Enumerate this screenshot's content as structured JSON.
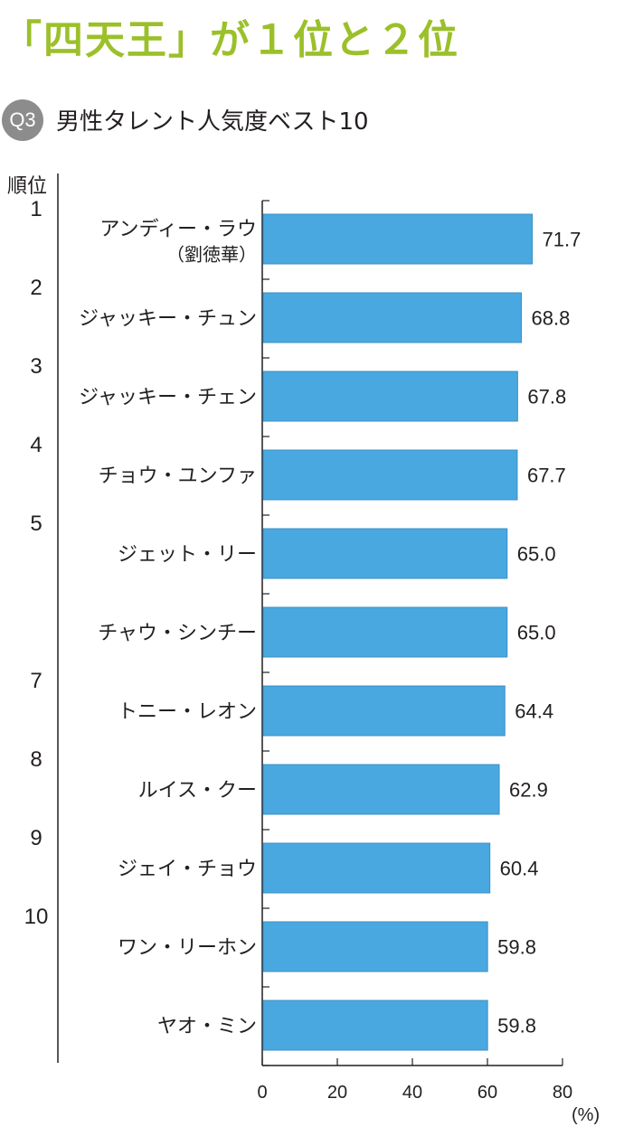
{
  "headline": "「四天王」が１位と２位",
  "question": {
    "badge": "Q3",
    "title": "男性タレント人気度ベスト10"
  },
  "chart_data": {
    "type": "bar",
    "orientation": "horizontal",
    "rank_header": "順位",
    "unit": "(%)",
    "xlim": [
      0,
      80
    ],
    "ticks": [
      0,
      20,
      40,
      60,
      80
    ],
    "ranks": [
      "1",
      "2",
      "3",
      "4",
      "5",
      "",
      "7",
      "8",
      "9",
      "10",
      ""
    ],
    "categories": [
      "アンディー・ラウ",
      "ジャッキー・チュン",
      "ジャッキー・チェン",
      "チョウ・ユンファ",
      "ジェット・リー",
      "チャウ・シンチー",
      "トニー・レオン",
      "ルイス・クー",
      "ジェイ・チョウ",
      "ワン・リーホン",
      "ヤオ・ミン"
    ],
    "subcategories": [
      "（劉徳華）",
      "",
      "",
      "",
      "",
      "",
      "",
      "",
      "",
      "",
      ""
    ],
    "values": [
      71.7,
      68.8,
      67.8,
      67.7,
      65.0,
      65.0,
      64.4,
      62.9,
      60.4,
      59.8,
      59.8
    ],
    "value_labels": [
      "71.7",
      "68.8",
      "67.8",
      "67.7",
      "65.0",
      "65.0",
      "64.4",
      "62.9",
      "60.4",
      "59.8",
      "59.8"
    ],
    "bar_color": "#4aa8e0"
  }
}
